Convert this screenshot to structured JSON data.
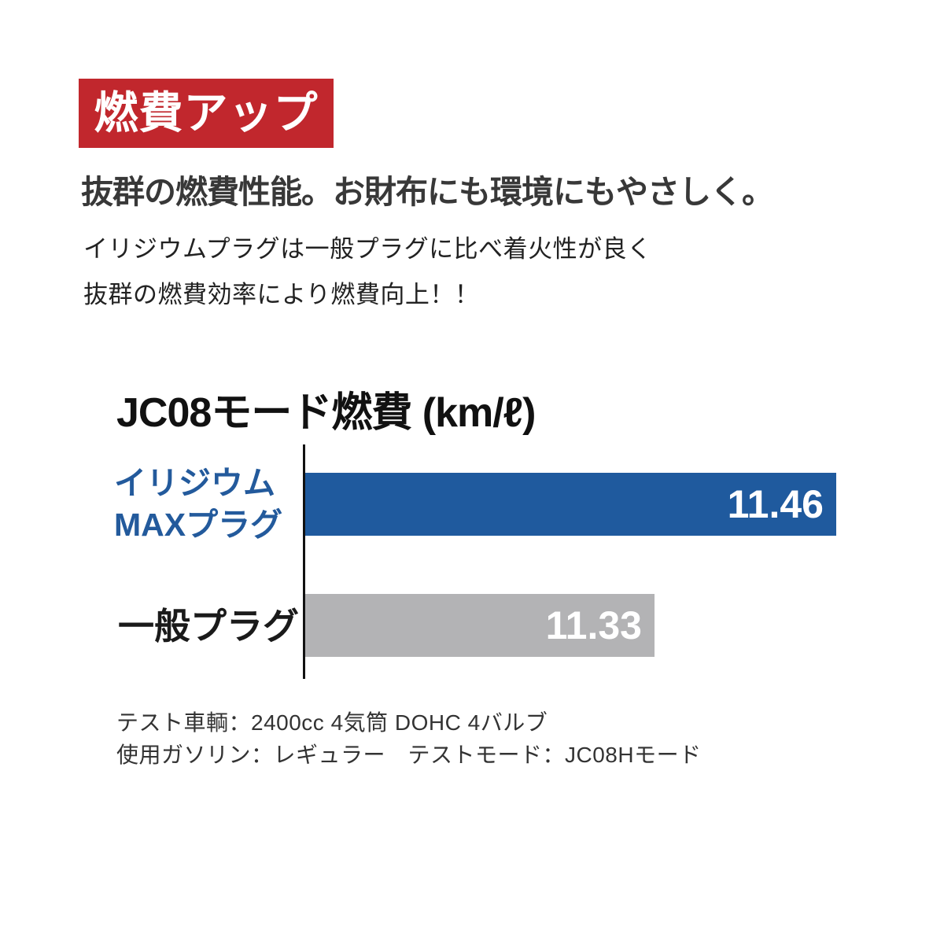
{
  "banner": {
    "label": "燃費アップ",
    "bg_color": "#c1272d",
    "text_color": "#ffffff"
  },
  "headline": "抜群の燃費性能。お財布にも環境にもやさしく。",
  "description": {
    "line1": "イリジウムプラグは一般プラグに比べ着火性が良く",
    "line2": "抜群の燃費効率により燃費向上！！"
  },
  "chart_data": {
    "type": "bar",
    "orientation": "horizontal",
    "title": "JC08モード燃費 (km/ℓ)",
    "categories": [
      "イリジウムMAXプラグ",
      "一般プラグ"
    ],
    "category_lines": [
      [
        "イリジウム",
        "MAXプラグ"
      ],
      [
        "一般プラグ"
      ]
    ],
    "values": [
      11.46,
      11.33
    ],
    "bar_colors": [
      "#1f5a9e",
      "#b3b3b5"
    ],
    "label_colors": [
      "#235a9c",
      "#1a1a1a"
    ],
    "value_text_color": "#ffffff",
    "xlim": [
      11.08,
      11.46
    ],
    "grid": false,
    "legend": false,
    "axis_color": "#111111"
  },
  "footer": {
    "line1": "テスト車輌：2400cc 4気筒 DOHC 4バルブ",
    "line2": "使用ガソリン：レギュラー　テストモード：JC08Hモード"
  }
}
